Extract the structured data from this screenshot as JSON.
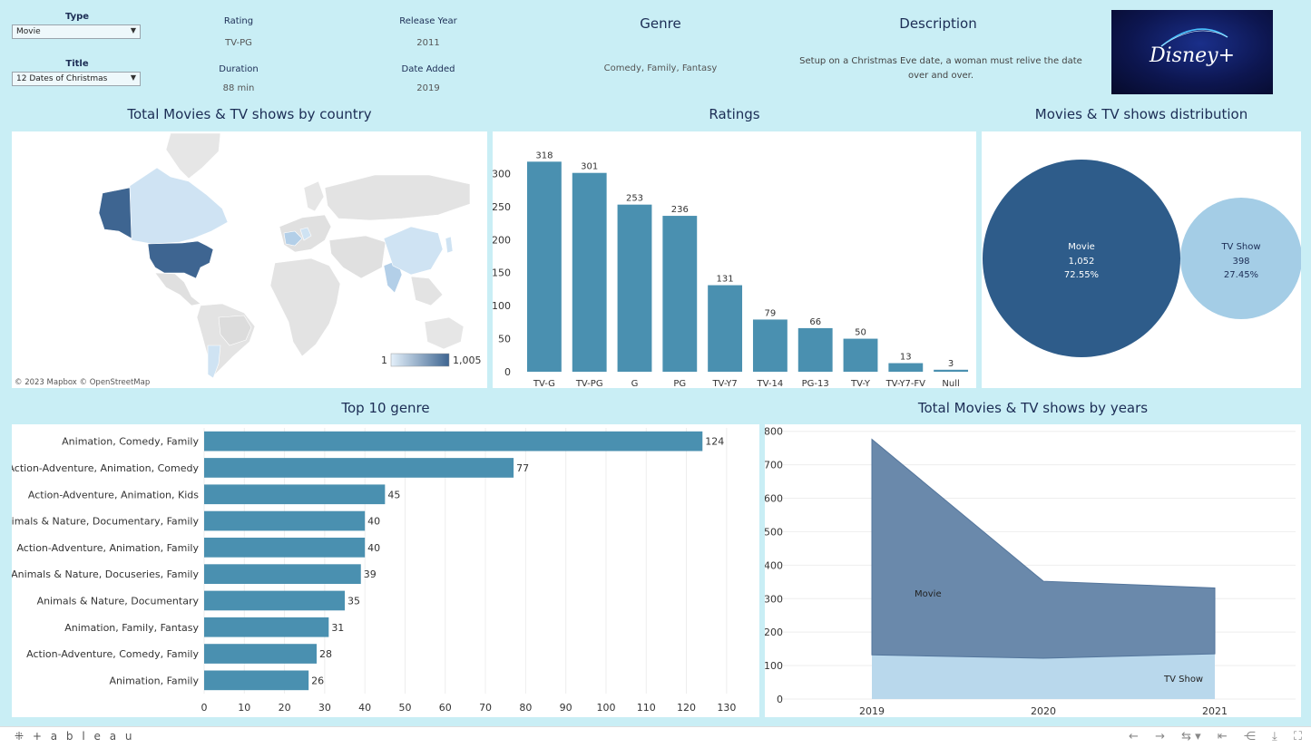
{
  "header": {
    "type_label": "Type",
    "type_value": "Movie",
    "title_label": "Title",
    "title_value": "12 Dates of Christmas",
    "rating_label": "Rating",
    "rating_value": "TV-PG",
    "duration_label": "Duration",
    "duration_value": "88 min",
    "release_label": "Release Year",
    "release_value": "2011",
    "added_label": "Date Added",
    "added_value": "2019",
    "genre_label": "Genre",
    "genre_value": "Comedy, Family, Fantasy",
    "description_label": "Description",
    "description_value": "Setup on a Christmas Eve date, a woman must relive the date over and over.",
    "logo_text": "Disney+"
  },
  "map": {
    "title": "Total Movies & TV shows by country",
    "legend_min": "1",
    "legend_max": "1,005",
    "attribution": "© 2023 Mapbox  © OpenStreetMap"
  },
  "footer": {
    "brand": "+ a b l e a u"
  },
  "chart_data": [
    {
      "type": "bar",
      "title": "Ratings",
      "categories": [
        "TV-G",
        "TV-PG",
        "G",
        "PG",
        "TV-Y7",
        "TV-14",
        "PG-13",
        "TV-Y",
        "TV-Y7-FV",
        "Null"
      ],
      "values": [
        318,
        301,
        253,
        236,
        131,
        79,
        66,
        50,
        13,
        3
      ],
      "yticks": [
        0,
        50,
        100,
        150,
        200,
        250,
        300
      ],
      "ylim": [
        0,
        350
      ],
      "color": "#4a90b0"
    },
    {
      "type": "pie",
      "title": "Movies & TV shows distribution",
      "series": [
        {
          "name": "Movie",
          "value": "1,052",
          "percent": "72.55%",
          "color": "#2e5c8a"
        },
        {
          "name": "TV Show",
          "value": "398",
          "percent": "27.45%",
          "color": "#a4cde6"
        }
      ]
    },
    {
      "type": "bar",
      "orientation": "horizontal",
      "title": "Top 10 genre",
      "categories": [
        "Animation, Comedy, Family",
        "Action-Adventure, Animation, Comedy",
        "Action-Adventure, Animation, Kids",
        "Animals & Nature, Documentary, Family",
        "Action-Adventure, Animation, Family",
        "Animals & Nature, Docuseries, Family",
        "Animals & Nature, Documentary",
        "Animation, Family, Fantasy",
        "Action-Adventure, Comedy, Family",
        "Animation, Family"
      ],
      "values": [
        124,
        77,
        45,
        40,
        40,
        39,
        35,
        31,
        28,
        26
      ],
      "xticks": [
        0,
        10,
        20,
        30,
        40,
        50,
        60,
        70,
        80,
        90,
        100,
        110,
        120,
        130
      ],
      "xlim": [
        0,
        135
      ],
      "color": "#4a90b0"
    },
    {
      "type": "area",
      "title": "Total Movies & TV shows by years",
      "x": [
        "2019",
        "2020",
        "2021"
      ],
      "series": [
        {
          "name": "Movie",
          "values": [
            644,
            230,
            197
          ],
          "color": "#6a89ab"
        },
        {
          "name": "TV Show",
          "values": [
            132,
            122,
            135
          ],
          "color": "#b9d8ec"
        }
      ],
      "yticks": [
        0,
        100,
        200,
        300,
        400,
        500,
        600,
        700,
        800
      ],
      "ylim": [
        0,
        810
      ]
    }
  ]
}
